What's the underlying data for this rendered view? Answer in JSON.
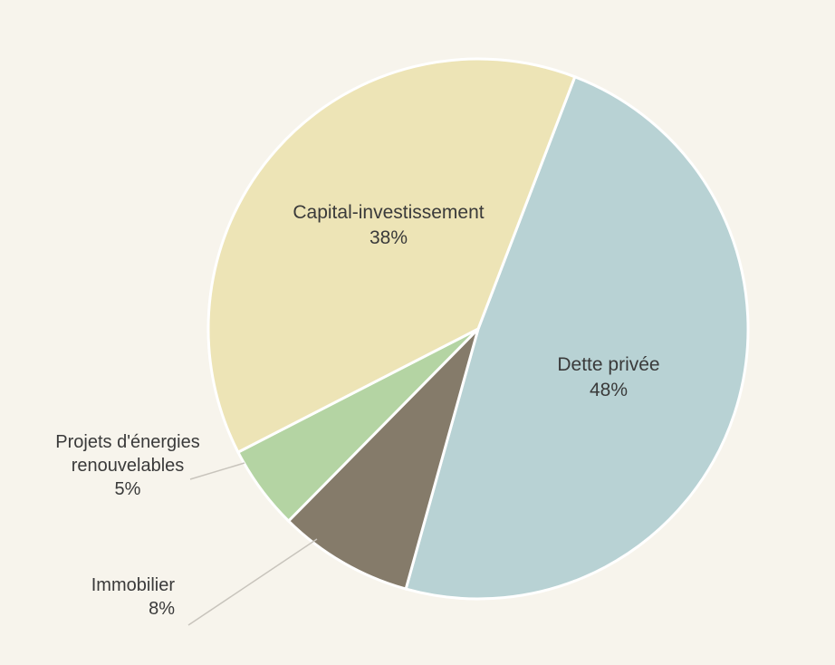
{
  "chart_data": {
    "type": "pie",
    "title": "",
    "categories": [
      "Dette privée",
      "Immobilier",
      "Projets d'énergies renouvelables",
      "Capital-investissement"
    ],
    "values": [
      48,
      8,
      5,
      38
    ],
    "value_labels": [
      "48%",
      "8%",
      "5%",
      "38%"
    ],
    "label_lines": [
      [
        "Dette privée",
        "48%"
      ],
      [
        "Immobilier",
        "8%"
      ],
      [
        "Projets d'énergies",
        "renouvelables",
        "5%"
      ],
      [
        "Capital-investissement",
        "38%"
      ]
    ],
    "colors": [
      "#b8d2d4",
      "#857b6a",
      "#b4d4a3",
      "#ede4b6"
    ],
    "background": "#f7f4ec",
    "start_angle_deg": 21,
    "direction": "clockwise"
  }
}
